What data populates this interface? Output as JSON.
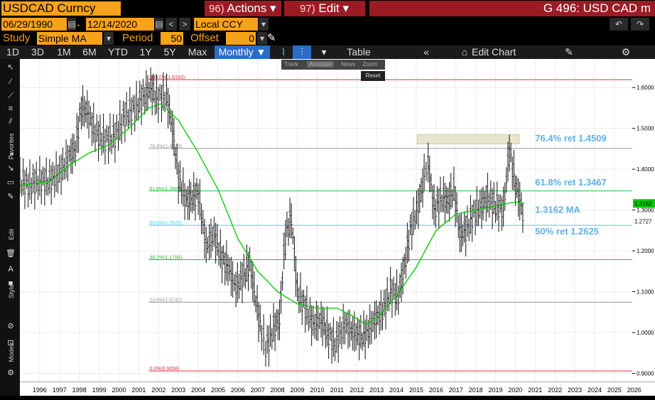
{
  "header": {
    "ticker": "USDCAD Curncy",
    "actions": {
      "num": "96)",
      "label": "Actions ▾"
    },
    "edit": {
      "num": "97)",
      "label": "Edit ▾"
    },
    "title": "G 496: USD CAD m"
  },
  "range": {
    "start": "06/29/1990",
    "end": "12/14/2020",
    "currency": "Local CCY"
  },
  "study": {
    "label": "Study",
    "value": "Simple MA",
    "period_label": "Period",
    "period": "50",
    "offset_label": "Offset",
    "offset": "0"
  },
  "tabs": {
    "d1": "1D",
    "d3": "3D",
    "m1": "1M",
    "m6": "6M",
    "ytd": "YTD",
    "y1": "1Y",
    "y5": "5Y",
    "max": "Max",
    "freq": "Monthly ▼",
    "table": "Table",
    "edit_chart": "Edit Chart"
  },
  "chart_menu": {
    "track": "Track",
    "annotate": "Annotate",
    "news": "News",
    "zoom": "Zoom",
    "reset": "Reset"
  },
  "sidebar": {
    "favorites": "Favorites",
    "edit": "Edit",
    "style": "Style",
    "modes": "Modes"
  },
  "colors": {
    "accent": "#f7a21b",
    "title_bar": "#9b1b24",
    "active_tab": "#2b6cc4",
    "ma": "#00c800",
    "fib_red": "#e03040",
    "fib_green": "#20c040",
    "fib_cyan": "#40d0e8",
    "annotation": "#5eb2e6"
  },
  "chart_data": {
    "type": "line",
    "x_ticks": [
      "1996",
      "1997",
      "1998",
      "1999",
      "2000",
      "2001",
      "2002",
      "2003",
      "2004",
      "2005",
      "2006",
      "2007",
      "2008",
      "2009",
      "2010",
      "2011",
      "2012",
      "2013",
      "2014",
      "2015",
      "2016",
      "2017",
      "2018",
      "2019",
      "2020",
      "2021",
      "2022",
      "2023",
      "2024",
      "2025",
      "2026"
    ],
    "y_ticks": [
      "1.6000",
      "1.5000",
      "1.4000",
      "1.3000",
      "1.2000",
      "1.1000",
      "1.0000",
      "0.9000"
    ],
    "ylim": [
      0.88,
      1.67
    ],
    "fib_levels": [
      {
        "label": "100.0%(1.6193)",
        "value": 1.6193,
        "color": "#e03040"
      },
      {
        "label": "76.4%(1.4509)",
        "value": 1.4509,
        "color": "#999999"
      },
      {
        "label": "61.8%(1.3467)",
        "value": 1.3467,
        "color": "#20c040"
      },
      {
        "label": "50.0%(1.2625)",
        "value": 1.2625,
        "color": "#40d0e8"
      },
      {
        "label": "38.2%(1.1784)",
        "value": 1.1784,
        "color": "#20c040"
      },
      {
        "label": "23.6%(1.0742)",
        "value": 1.0742,
        "color": "#999999"
      },
      {
        "label": "0.0%(0.9058)",
        "value": 0.9058,
        "color": "#e03040"
      }
    ],
    "annotations": [
      "76.4% ret 1.4509",
      "61.8% ret 1.3467",
      "1.3162 MA",
      "50% ret 1.2625"
    ],
    "last_price": "1.2727",
    "ma_value": "1.3162",
    "price_series": {
      "name": "USDCAD",
      "points": [
        [
          1995.5,
          1.37
        ],
        [
          1996.0,
          1.36
        ],
        [
          1996.5,
          1.37
        ],
        [
          1997.0,
          1.37
        ],
        [
          1997.5,
          1.39
        ],
        [
          1998.0,
          1.43
        ],
        [
          1998.3,
          1.45
        ],
        [
          1998.6,
          1.55
        ],
        [
          1998.9,
          1.54
        ],
        [
          1999.3,
          1.49
        ],
        [
          1999.8,
          1.47
        ],
        [
          2000.3,
          1.48
        ],
        [
          2000.8,
          1.53
        ],
        [
          2001.3,
          1.55
        ],
        [
          2001.8,
          1.58
        ],
        [
          2002.1,
          1.6
        ],
        [
          2002.4,
          1.57
        ],
        [
          2002.9,
          1.58
        ],
        [
          2003.2,
          1.5
        ],
        [
          2003.5,
          1.38
        ],
        [
          2003.9,
          1.32
        ],
        [
          2004.2,
          1.33
        ],
        [
          2004.5,
          1.34
        ],
        [
          2004.9,
          1.21
        ],
        [
          2005.3,
          1.24
        ],
        [
          2005.7,
          1.18
        ],
        [
          2006.0,
          1.16
        ],
        [
          2006.4,
          1.11
        ],
        [
          2006.8,
          1.14
        ],
        [
          2007.1,
          1.17
        ],
        [
          2007.4,
          1.08
        ],
        [
          2007.7,
          1.0
        ],
        [
          2007.9,
          0.96
        ],
        [
          2008.3,
          1.01
        ],
        [
          2008.6,
          1.03
        ],
        [
          2008.9,
          1.24
        ],
        [
          2009.2,
          1.28
        ],
        [
          2009.5,
          1.1
        ],
        [
          2009.9,
          1.06
        ],
        [
          2010.3,
          1.02
        ],
        [
          2010.7,
          1.03
        ],
        [
          2011.0,
          1.0
        ],
        [
          2011.4,
          0.97
        ],
        [
          2011.9,
          1.02
        ],
        [
          2012.3,
          1.0
        ],
        [
          2012.7,
          0.99
        ],
        [
          2013.0,
          1.0
        ],
        [
          2013.4,
          1.03
        ],
        [
          2013.8,
          1.05
        ],
        [
          2014.2,
          1.1
        ],
        [
          2014.6,
          1.09
        ],
        [
          2014.9,
          1.16
        ],
        [
          2015.2,
          1.25
        ],
        [
          2015.6,
          1.31
        ],
        [
          2015.9,
          1.38
        ],
        [
          2016.1,
          1.42
        ],
        [
          2016.4,
          1.3
        ],
        [
          2016.8,
          1.33
        ],
        [
          2017.1,
          1.32
        ],
        [
          2017.4,
          1.35
        ],
        [
          2017.7,
          1.24
        ],
        [
          2018.0,
          1.25
        ],
        [
          2018.4,
          1.29
        ],
        [
          2018.8,
          1.31
        ],
        [
          2019.1,
          1.33
        ],
        [
          2019.5,
          1.31
        ],
        [
          2019.9,
          1.3
        ],
        [
          2020.2,
          1.45
        ],
        [
          2020.5,
          1.36
        ],
        [
          2020.8,
          1.31
        ],
        [
          2020.95,
          1.2727
        ]
      ]
    },
    "ma_series": {
      "name": "Simple MA 50",
      "points": [
        [
          1995.5,
          1.36
        ],
        [
          1997.0,
          1.37
        ],
        [
          1998.0,
          1.41
        ],
        [
          1999.0,
          1.44
        ],
        [
          2000.0,
          1.46
        ],
        [
          2001.0,
          1.5
        ],
        [
          2002.0,
          1.55
        ],
        [
          2002.6,
          1.56
        ],
        [
          2003.5,
          1.52
        ],
        [
          2004.5,
          1.44
        ],
        [
          2005.5,
          1.35
        ],
        [
          2006.5,
          1.23
        ],
        [
          2007.5,
          1.15
        ],
        [
          2008.5,
          1.1
        ],
        [
          2009.5,
          1.07
        ],
        [
          2010.5,
          1.06
        ],
        [
          2011.5,
          1.06
        ],
        [
          2012.3,
          1.04
        ],
        [
          2013.0,
          1.02
        ],
        [
          2013.6,
          1.04
        ],
        [
          2014.5,
          1.09
        ],
        [
          2015.5,
          1.16
        ],
        [
          2016.5,
          1.25
        ],
        [
          2017.5,
          1.29
        ],
        [
          2018.5,
          1.3
        ],
        [
          2019.5,
          1.31
        ],
        [
          2020.5,
          1.32
        ],
        [
          2020.95,
          1.3162
        ]
      ]
    }
  }
}
